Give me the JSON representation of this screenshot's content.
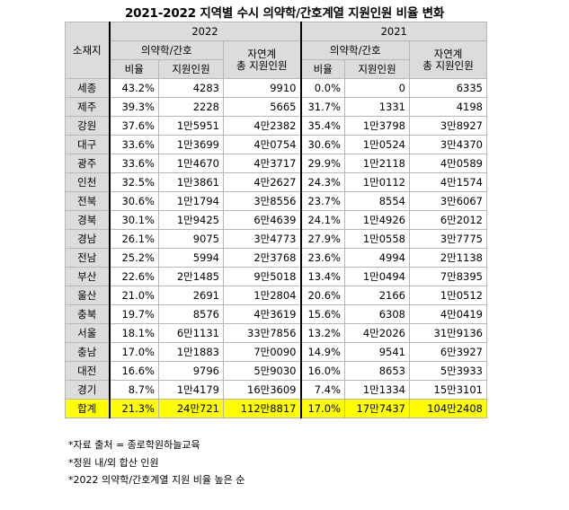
{
  "title": "2021-2022 지역별 수시 의약학/간호계열 지원인원 비율 변화",
  "header": {
    "region": "소재지",
    "year_2022": "2022",
    "year_2021": "2021",
    "med_group": "의약학/간호",
    "natural_total": [
      "자연계",
      "총 지원인원"
    ],
    "ratio": "비율",
    "applicants": "지원인원"
  },
  "rows": [
    {
      "region": "세종",
      "r22": "43.2%",
      "a22": "4283",
      "n22": "9910",
      "r21": "0.0%",
      "a21": "0",
      "n21": "6335"
    },
    {
      "region": "제주",
      "r22": "39.3%",
      "a22": "2228",
      "n22": "5665",
      "r21": "31.7%",
      "a21": "1331",
      "n21": "4198"
    },
    {
      "region": "강원",
      "r22": "37.6%",
      "a22": "1만5951",
      "n22": "4만2382",
      "r21": "35.4%",
      "a21": "1만3798",
      "n21": "3만8927"
    },
    {
      "region": "대구",
      "r22": "33.6%",
      "a22": "1만3699",
      "n22": "4만0754",
      "r21": "30.6%",
      "a21": "1만0524",
      "n21": "3만4370"
    },
    {
      "region": "광주",
      "r22": "33.6%",
      "a22": "1만4670",
      "n22": "4만3717",
      "r21": "29.9%",
      "a21": "1만2118",
      "n21": "4만0589"
    },
    {
      "region": "인천",
      "r22": "32.5%",
      "a22": "1만3861",
      "n22": "4만2627",
      "r21": "24.3%",
      "a21": "1만0112",
      "n21": "4만1574"
    },
    {
      "region": "전북",
      "r22": "30.6%",
      "a22": "1만1794",
      "n22": "3만8556",
      "r21": "23.7%",
      "a21": "8554",
      "n21": "3만6067"
    },
    {
      "region": "경북",
      "r22": "30.1%",
      "a22": "1만9425",
      "n22": "6만4639",
      "r21": "24.1%",
      "a21": "1만4926",
      "n21": "6만2012"
    },
    {
      "region": "경남",
      "r22": "26.1%",
      "a22": "9075",
      "n22": "3만4773",
      "r21": "27.9%",
      "a21": "1만0558",
      "n21": "3만7775"
    },
    {
      "region": "전남",
      "r22": "25.2%",
      "a22": "5994",
      "n22": "2만3768",
      "r21": "23.6%",
      "a21": "4994",
      "n21": "2만1138"
    },
    {
      "region": "부산",
      "r22": "22.6%",
      "a22": "2만1485",
      "n22": "9만5018",
      "r21": "13.4%",
      "a21": "1만0494",
      "n21": "7만8395"
    },
    {
      "region": "울산",
      "r22": "21.0%",
      "a22": "2691",
      "n22": "1만2804",
      "r21": "20.6%",
      "a21": "2166",
      "n21": "1만0512"
    },
    {
      "region": "충북",
      "r22": "19.7%",
      "a22": "8576",
      "n22": "4만3619",
      "r21": "15.6%",
      "a21": "6308",
      "n21": "4만0419"
    },
    {
      "region": "서울",
      "r22": "18.1%",
      "a22": "6만1131",
      "n22": "33만7856",
      "r21": "13.2%",
      "a21": "4만2026",
      "n21": "31만9136"
    },
    {
      "region": "충남",
      "r22": "17.0%",
      "a22": "1만1883",
      "n22": "7만0090",
      "r21": "14.9%",
      "a21": "9541",
      "n21": "6만3927"
    },
    {
      "region": "대전",
      "r22": "16.6%",
      "a22": "9796",
      "n22": "5만9030",
      "r21": "16.0%",
      "a21": "8653",
      "n21": "5만3933"
    },
    {
      "region": "경기",
      "r22": "8.7%",
      "a22": "1만4179",
      "n22": "16만3609",
      "r21": "7.4%",
      "a21": "1만1334",
      "n21": "15만3101"
    }
  ],
  "total": {
    "region": "합계",
    "r22": "21.3%",
    "a22": "24만721",
    "n22": "112만8817",
    "r21": "17.0%",
    "a21": "17만7437",
    "n21": "104만2408"
  },
  "notes": [
    "*자료 출처 = 종로학원하늘교육",
    "*정원 내/외 합산 인원",
    "*2022 의약학/간호계열 지원 비율 높은 순"
  ],
  "colors": {
    "header_bg": "#dcdcdc",
    "total_bg": "#ffff00",
    "border": "#b7b7b7"
  }
}
